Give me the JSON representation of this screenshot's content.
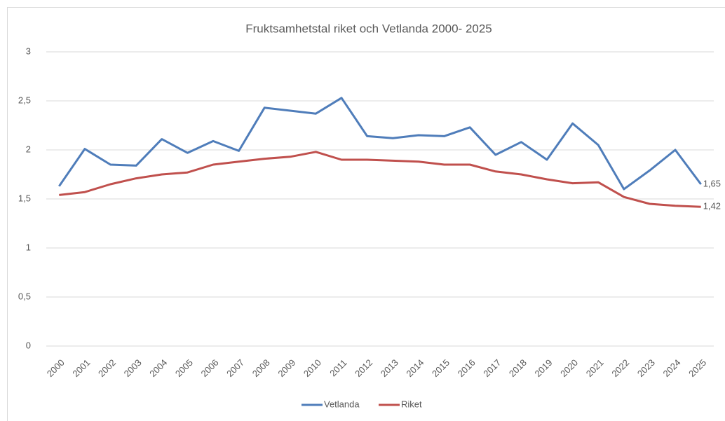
{
  "chart_data": {
    "type": "line",
    "title": "Fruktsamhetstal riket och Vetlanda 2000- 2025",
    "categories": [
      "2000",
      "2001",
      "2002",
      "2003",
      "2004",
      "2005",
      "2006",
      "2007",
      "2008",
      "2009",
      "2010",
      "2011",
      "2012",
      "2013",
      "2014",
      "2015",
      "2016",
      "2017",
      "2018",
      "2019",
      "2020",
      "2021",
      "2022",
      "2023",
      "2024",
      "2025"
    ],
    "series": [
      {
        "name": "Vetlanda",
        "color": "#4f7dba",
        "values": [
          1.63,
          2.01,
          1.85,
          1.84,
          2.11,
          1.97,
          2.09,
          1.99,
          2.43,
          2.4,
          2.37,
          2.53,
          2.14,
          2.12,
          2.15,
          2.14,
          2.23,
          1.95,
          2.08,
          1.9,
          2.27,
          2.05,
          1.6,
          1.79,
          2.0,
          1.65
        ],
        "value_labels": [
          null,
          null,
          null,
          null,
          null,
          null,
          null,
          null,
          null,
          null,
          null,
          null,
          null,
          null,
          null,
          null,
          null,
          null,
          null,
          null,
          null,
          null,
          null,
          null,
          null,
          "1,65"
        ]
      },
      {
        "name": "Riket",
        "color": "#c0504d",
        "values": [
          1.54,
          1.57,
          1.65,
          1.71,
          1.75,
          1.77,
          1.85,
          1.88,
          1.91,
          1.93,
          1.98,
          1.9,
          1.9,
          1.89,
          1.88,
          1.85,
          1.85,
          1.78,
          1.75,
          1.7,
          1.66,
          1.67,
          1.52,
          1.45,
          1.43,
          1.42
        ],
        "value_labels": [
          null,
          null,
          null,
          null,
          null,
          null,
          null,
          null,
          null,
          null,
          null,
          null,
          null,
          null,
          null,
          null,
          null,
          null,
          null,
          null,
          null,
          null,
          null,
          null,
          null,
          "1,42"
        ]
      }
    ],
    "ylim": [
      0,
      3
    ],
    "yticks": [
      0,
      {
        "value": 0.5,
        "label": "0,5"
      },
      1,
      {
        "value": 1.5,
        "label": "1,5"
      },
      2,
      {
        "value": 2.5,
        "label": "2,5"
      },
      3
    ],
    "grid": true,
    "legend": "bottom"
  }
}
